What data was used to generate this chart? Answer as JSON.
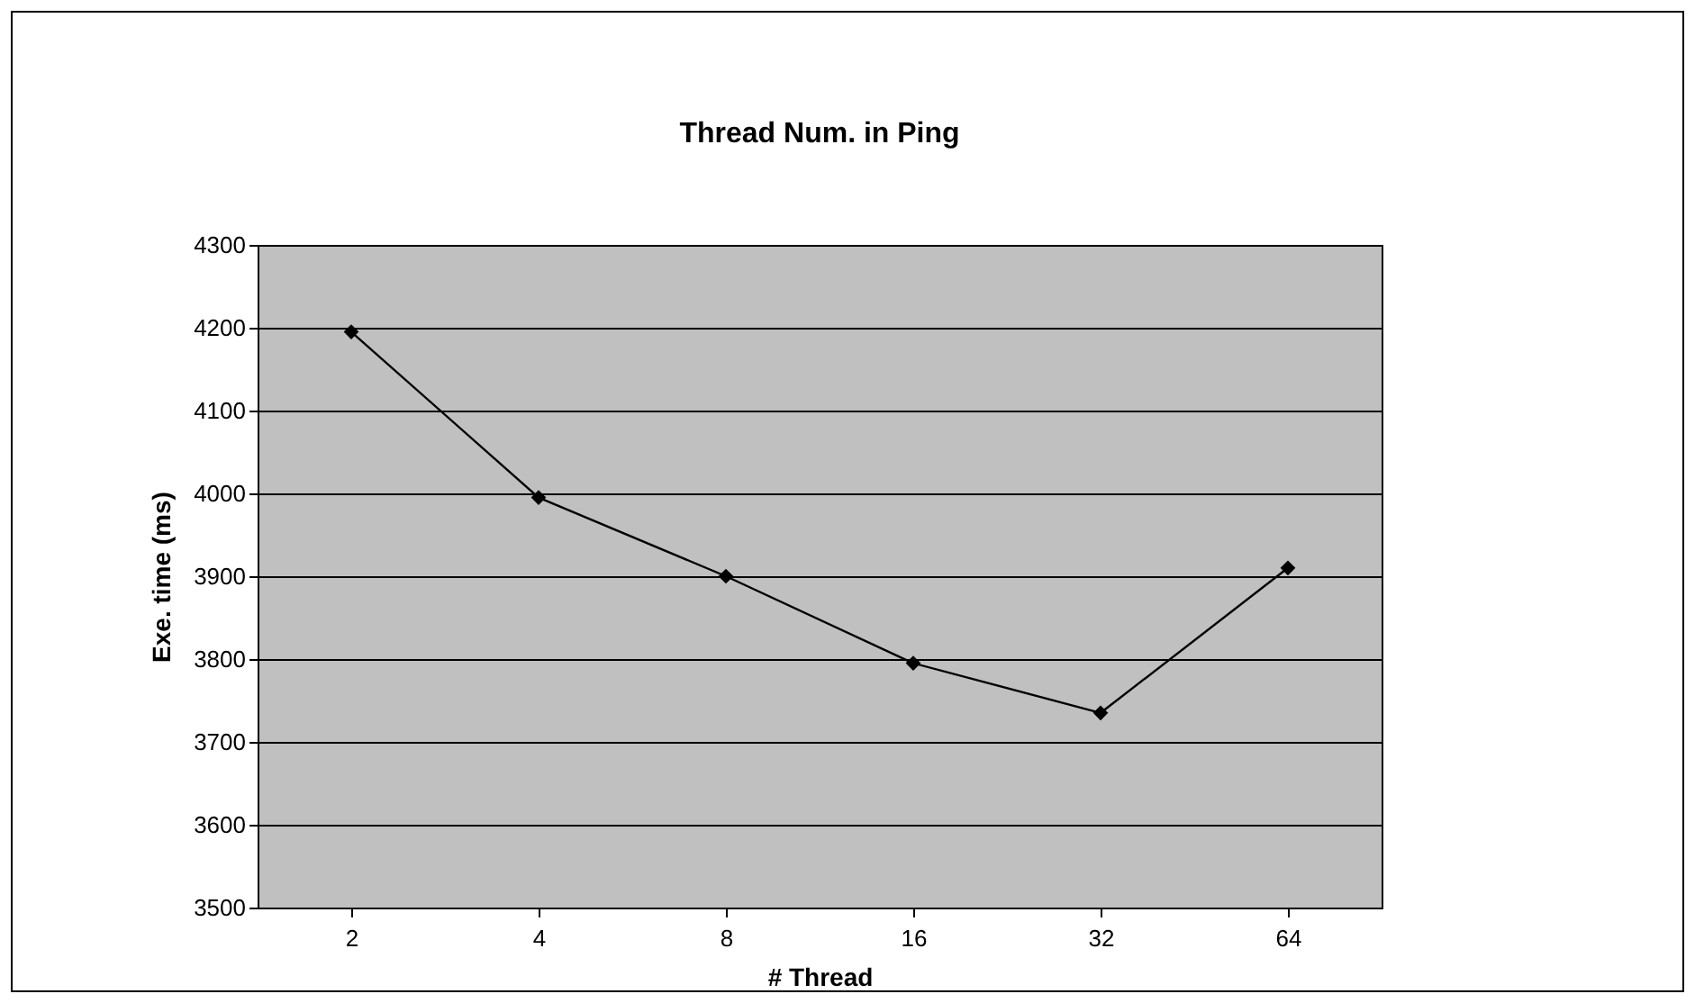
{
  "chart_data": {
    "type": "line",
    "title": "Thread Num. in Ping",
    "xlabel": "# Thread",
    "ylabel": "Exe. time (ms)",
    "categories": [
      "2",
      "4",
      "8",
      "16",
      "32",
      "64"
    ],
    "series": [
      {
        "color": "#000000",
        "values": [
          4195,
          3995,
          3900,
          3795,
          3735,
          3910
        ]
      }
    ],
    "ylim": [
      3500,
      4300
    ],
    "yticks": [
      3500,
      3600,
      3700,
      3800,
      3900,
      4000,
      4100,
      4200,
      4300
    ],
    "grid": "y",
    "marker": "diamond",
    "line_style": "solid"
  }
}
